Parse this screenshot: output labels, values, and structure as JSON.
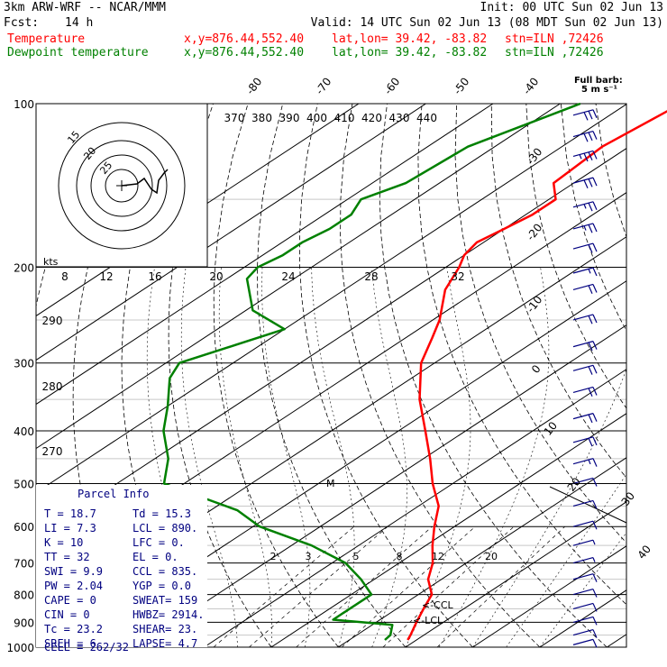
{
  "header": {
    "model": "3km ARW-WRF -- NCAR/MMM",
    "init": "Init: 00 UTC Sun 02 Jun 13",
    "fcst_label": "Fcst:",
    "fcst_value": "14 h",
    "valid": "Valid: 14 UTC Sun 02 Jun 13 (08 MDT Sun 02 Jun 13)",
    "temperature_label": "Temperature",
    "dewpoint_label": "Dewpoint temperature",
    "xy": "x,y=876.44,552.40",
    "latlon": "lat,lon= 39.42, -83.82",
    "station": "stn=ILN ,72426",
    "full_barb": "Full barb:",
    "full_barb_units": "5 m s⁻¹"
  },
  "colors": {
    "temperature": "#ff0000",
    "dewpoint": "#008000",
    "parcel_info": "#000080",
    "wind_barbs": "#000080"
  },
  "chart_data": {
    "type": "skew-t",
    "pressure_levels": [
      100,
      200,
      300,
      400,
      500,
      600,
      700,
      800,
      900,
      1000
    ],
    "isotherm_labels": [
      "-80",
      "-70",
      "-60",
      "-50",
      "-40",
      "-30",
      "-20",
      "-10",
      "0",
      "10",
      "20",
      "30",
      "40"
    ],
    "theta_labels": [
      "370",
      "380",
      "390",
      "400",
      "410",
      "420",
      "430",
      "440"
    ],
    "theta_left_labels": [
      "290",
      "280",
      "270"
    ],
    "hodograph_speed_labels": [
      "8",
      "12",
      "16",
      "20",
      "24",
      "28",
      "32"
    ],
    "hodograph_units": "kts",
    "mixing_ratio_labels": [
      "2",
      "3",
      "5",
      "8",
      "12",
      "20"
    ],
    "annotations": {
      "ccl": "<-CCL",
      "lcl": "<-LCL",
      "level_marker": "M"
    },
    "series": [
      {
        "name": "Temperature",
        "points": [
          [
            100,
            -62
          ],
          [
            120,
            -64
          ],
          [
            140,
            -63
          ],
          [
            150,
            -59
          ],
          [
            160,
            -59
          ],
          [
            170,
            -60
          ],
          [
            180,
            -61
          ],
          [
            190,
            -60
          ],
          [
            200,
            -58
          ],
          [
            220,
            -55
          ],
          [
            250,
            -49
          ],
          [
            270,
            -46
          ],
          [
            300,
            -42
          ],
          [
            350,
            -34
          ],
          [
            400,
            -26
          ],
          [
            450,
            -19
          ],
          [
            500,
            -13
          ],
          [
            550,
            -7
          ],
          [
            600,
            -3
          ],
          [
            650,
            1
          ],
          [
            700,
            5
          ],
          [
            750,
            8
          ],
          [
            800,
            12
          ],
          [
            850,
            14
          ],
          [
            900,
            16
          ],
          [
            950,
            18
          ],
          [
            970,
            18.7
          ]
        ]
      },
      {
        "name": "Dewpoint temperature",
        "points": [
          [
            100,
            -77
          ],
          [
            120,
            -84
          ],
          [
            140,
            -85
          ],
          [
            150,
            -88
          ],
          [
            160,
            -86
          ],
          [
            170,
            -86
          ],
          [
            180,
            -87
          ],
          [
            190,
            -87
          ],
          [
            200,
            -88
          ],
          [
            210,
            -87
          ],
          [
            240,
            -79
          ],
          [
            260,
            -70
          ],
          [
            300,
            -78
          ],
          [
            320,
            -76
          ],
          [
            360,
            -70
          ],
          [
            400,
            -65
          ],
          [
            450,
            -58
          ],
          [
            500,
            -53
          ],
          [
            560,
            -36
          ],
          [
            600,
            -29
          ],
          [
            650,
            -17
          ],
          [
            700,
            -8
          ],
          [
            750,
            -2
          ],
          [
            800,
            3
          ],
          [
            850,
            3
          ],
          [
            890,
            3
          ],
          [
            910,
            13
          ],
          [
            950,
            15
          ],
          [
            970,
            15.3
          ]
        ]
      }
    ],
    "barbs": [
      {
        "p": 105,
        "spd": 30
      },
      {
        "p": 115,
        "spd": 30
      },
      {
        "p": 125,
        "spd": 35
      },
      {
        "p": 140,
        "spd": 30
      },
      {
        "p": 155,
        "spd": 25
      },
      {
        "p": 170,
        "spd": 25
      },
      {
        "p": 185,
        "spd": 20
      },
      {
        "p": 205,
        "spd": 15
      },
      {
        "p": 220,
        "spd": 20
      },
      {
        "p": 250,
        "spd": 20
      },
      {
        "p": 280,
        "spd": 20
      },
      {
        "p": 310,
        "spd": 20
      },
      {
        "p": 340,
        "spd": 20
      },
      {
        "p": 380,
        "spd": 20
      },
      {
        "p": 420,
        "spd": 20
      },
      {
        "p": 460,
        "spd": 15
      },
      {
        "p": 500,
        "spd": 10
      },
      {
        "p": 550,
        "spd": 10
      },
      {
        "p": 600,
        "spd": 10
      },
      {
        "p": 650,
        "spd": 5
      },
      {
        "p": 700,
        "spd": 5
      },
      {
        "p": 750,
        "spd": 10
      },
      {
        "p": 800,
        "spd": 10
      },
      {
        "p": 850,
        "spd": 10
      },
      {
        "p": 900,
        "spd": 10
      },
      {
        "p": 950,
        "spd": 10
      },
      {
        "p": 990,
        "spd": 10
      }
    ]
  },
  "parcel_info": {
    "title": "Parcel Info",
    "rows": [
      [
        "T  =     18.7",
        "Td  =  15.3"
      ],
      [
        "LI =      7.3",
        "LCL =  890."
      ],
      [
        "K  =       10",
        "LFC =    0."
      ],
      [
        "TT =       32",
        "EL  =    0."
      ],
      [
        "SWI =     9.9",
        "CCL =  835."
      ],
      [
        "PW =     2.04",
        "YGP =   0.0"
      ],
      [
        "CAPE =      0",
        "SWEAT=  159"
      ],
      [
        "CIN =       0",
        "HWBZ= 2914."
      ],
      [
        "Tc =     23.2",
        "SHEAR= 23."
      ],
      [
        "SREH =      6",
        "LAPSE= 4.7"
      ]
    ],
    "cell": "CELL = 262/32"
  }
}
